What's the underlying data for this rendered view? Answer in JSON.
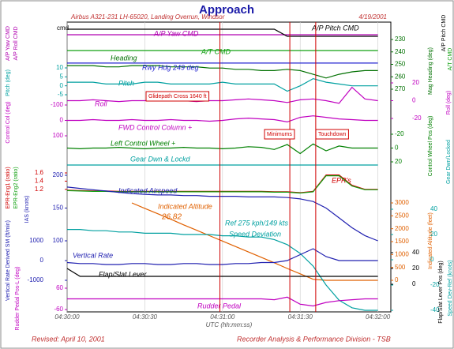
{
  "header": {
    "title": "Approach",
    "subtitle": "Airbus A321-231 LH-65020, Landing Overrun, Windsor",
    "date": "4/19/2001",
    "marker": "cmd"
  },
  "time_axis": {
    "xlabel": "UTC (hh:mm:ss)",
    "xlim": [
      0,
      125
    ],
    "xticks": [
      {
        "value": 0,
        "label": "04:30:00"
      },
      {
        "value": 30,
        "label": "04:30:30"
      },
      {
        "value": 60,
        "label": "04:31:00"
      },
      {
        "value": 90,
        "label": "04:31:30"
      },
      {
        "value": 120,
        "label": "04:32:00"
      }
    ],
    "x": [
      0,
      5,
      10,
      15,
      20,
      25,
      30,
      35,
      40,
      45,
      50,
      55,
      60,
      65,
      70,
      75,
      80,
      85,
      90,
      95,
      100,
      105,
      110,
      115,
      120
    ]
  },
  "events": [
    {
      "t": 59,
      "label": "Glidepath Cross 1640 ft"
    },
    {
      "t": 86,
      "label": "Minimums"
    },
    {
      "t": 96,
      "label": "Touchdown"
    }
  ],
  "annotations": [
    "26.82",
    "Ref 275 kph/149 kts"
  ],
  "chart_data": [
    {
      "type": "line",
      "ylabels": [
        "A/P Yaw CMD",
        "A/P Roll CMD"
      ],
      "ylim": [
        0,
        1
      ],
      "yticks": [],
      "series": [
        {
          "name": "A/P Yaw CMD",
          "color": "#b000b0",
          "values": [
            1,
            1,
            1,
            1,
            1,
            1,
            1,
            1,
            1,
            1,
            1,
            1,
            1,
            1,
            1,
            1,
            1,
            1,
            1,
            1,
            1,
            1,
            1,
            1,
            1
          ]
        }
      ]
    },
    {
      "type": "line",
      "ylabels": [
        "A/P Pitch CMD"
      ],
      "ylim": [
        0,
        1
      ],
      "yticks": [],
      "series": [
        {
          "name": "A/P Pitch CMD",
          "color": "#000000",
          "values": [
            1,
            1,
            1,
            1,
            1,
            1,
            1,
            1,
            1,
            1,
            1,
            1,
            1,
            1,
            1,
            1,
            1,
            0,
            0,
            0,
            0,
            0,
            0,
            0,
            0
          ]
        }
      ]
    },
    {
      "type": "line",
      "ylabels": [
        "A/T CMD"
      ],
      "ylim": [
        0,
        1
      ],
      "yticks": [],
      "series": [
        {
          "name": "A/T CMD",
          "color": "#10a010",
          "values": [
            1,
            1,
            1,
            1,
            1,
            1,
            1,
            1,
            1,
            1,
            1,
            1,
            1,
            1,
            1,
            1,
            1,
            1,
            1,
            1,
            1,
            1,
            1,
            1,
            1
          ]
        }
      ]
    },
    {
      "type": "line",
      "ylabels": [
        "Mag Heading (deg)"
      ],
      "ylim": [
        270,
        230
      ],
      "yticks": [
        230,
        240,
        250,
        260,
        270
      ],
      "series": [
        {
          "name": "Heading",
          "color": "#007000",
          "values": [
            251,
            251,
            251,
            252,
            252,
            251,
            251,
            251,
            252,
            252,
            252,
            253,
            253,
            254,
            254,
            255,
            255,
            254,
            255,
            258,
            261,
            258,
            256,
            255,
            255
          ]
        },
        {
          "name": "Rwy Hdg 249 deg",
          "color": "#2020d0",
          "values": [
            249,
            249,
            249,
            249,
            249,
            249,
            249,
            249,
            249,
            249,
            249,
            249,
            249,
            249,
            249,
            249,
            249,
            249,
            249,
            249,
            249,
            249,
            249,
            249,
            249
          ]
        }
      ]
    },
    {
      "type": "line",
      "ylabels": [
        "Pitch (deg)"
      ],
      "ylim": [
        -5,
        10
      ],
      "yticks": [
        10,
        5,
        0,
        -5
      ],
      "series": [
        {
          "name": "Pitch",
          "color": "#00a0a0",
          "values": [
            2,
            2,
            2,
            1,
            1,
            1,
            2,
            2,
            1,
            1,
            1,
            1,
            2,
            1,
            1,
            1,
            1,
            -3,
            0,
            4,
            2,
            1,
            0,
            0,
            0
          ]
        }
      ]
    },
    {
      "type": "line",
      "ylabels": [
        "Roll (deg)"
      ],
      "ylim": [
        -20,
        20
      ],
      "yticks": [
        -20,
        0,
        20
      ],
      "series": [
        {
          "name": "Roll",
          "color": "#c000c0",
          "values": [
            0,
            0,
            1,
            0,
            -1,
            0,
            0,
            1,
            0,
            0,
            -1,
            0,
            0,
            1,
            2,
            1,
            0,
            -2,
            1,
            2,
            0,
            -3,
            15,
            2,
            0
          ]
        }
      ]
    },
    {
      "type": "line",
      "ylabels": [
        "Control Col (deg)"
      ],
      "ylim": [
        100,
        -100
      ],
      "yticks": [
        -100,
        0,
        100
      ],
      "series": [
        {
          "name": "FWD Control Column +",
          "color": "#c000c0",
          "values": [
            0,
            0,
            -5,
            0,
            0,
            -5,
            0,
            0,
            -5,
            0,
            0,
            5,
            0,
            -10,
            -15,
            -10,
            -5,
            10,
            -20,
            -30,
            -20,
            -10,
            -5,
            0,
            0
          ]
        }
      ]
    },
    {
      "type": "line",
      "ylabels": [
        "Control Wheel Pos (deg)"
      ],
      "ylim": [
        20,
        -20
      ],
      "yticks": [
        -20,
        0,
        20
      ],
      "series": [
        {
          "name": "Left Control Wheel +",
          "color": "#008000",
          "values": [
            0,
            1,
            0,
            0,
            -1,
            0,
            1,
            0,
            0,
            -1,
            0,
            0,
            1,
            0,
            -2,
            -1,
            2,
            -5,
            8,
            -6,
            4,
            -3,
            0,
            0,
            0
          ]
        }
      ]
    },
    {
      "type": "line",
      "ylabels": [
        "Gear Dwn/Locked"
      ],
      "ylim": [
        0,
        1
      ],
      "yticks": [],
      "series": [
        {
          "name": "Gear Dwn & Lockd",
          "color": "#00a0a0",
          "values": [
            1,
            1,
            1,
            1,
            1,
            1,
            1,
            1,
            1,
            1,
            1,
            1,
            1,
            1,
            1,
            1,
            1,
            1,
            1,
            1,
            1,
            1,
            1,
            1,
            1
          ]
        }
      ]
    },
    {
      "type": "line",
      "ylabels": [
        "EPR-Eng1 (ratio)",
        "EPR-Eng2 (ratio)"
      ],
      "ylim": [
        1.1,
        1.6
      ],
      "yticks": [
        1.2,
        1.4,
        1.6
      ],
      "series": [
        {
          "name": "EPR's",
          "color": "#d00000",
          "values": [
            1.18,
            1.17,
            1.16,
            1.16,
            1.15,
            1.15,
            1.15,
            1.15,
            1.15,
            1.15,
            1.15,
            1.15,
            1.15,
            1.15,
            1.15,
            1.15,
            1.14,
            1.14,
            1.12,
            1.15,
            1.55,
            1.55,
            1.3,
            1.2,
            1.2
          ]
        },
        {
          "color": "#10a010",
          "values": [
            1.17,
            1.16,
            1.15,
            1.15,
            1.14,
            1.14,
            1.14,
            1.14,
            1.14,
            1.14,
            1.14,
            1.14,
            1.14,
            1.14,
            1.14,
            1.14,
            1.13,
            1.13,
            1.11,
            1.14,
            1.53,
            1.53,
            1.28,
            1.19,
            1.19
          ]
        }
      ]
    },
    {
      "type": "line",
      "ylabels": [
        "IAS (knots)"
      ],
      "ylim": [
        100,
        200
      ],
      "yticks": [
        100,
        150,
        200
      ],
      "series": [
        {
          "name": "Indicated Airspeed",
          "color": "#2020b0",
          "values": [
            182,
            180,
            178,
            176,
            174,
            172,
            171,
            170,
            170,
            169,
            169,
            168,
            168,
            168,
            167,
            167,
            167,
            166,
            164,
            160,
            150,
            135,
            120,
            108,
            100
          ]
        }
      ]
    },
    {
      "type": "line",
      "ylabels": [
        "Indicated Altitude (feet)"
      ],
      "ylim": [
        0,
        3000
      ],
      "yticks": [
        0,
        500,
        1000,
        1500,
        2000,
        2500,
        3000
      ],
      "series": [
        {
          "name": "Indicated Altitude",
          "color": "#e06000",
          "values": [
            null,
            null,
            null,
            null,
            null,
            3000,
            2790,
            2580,
            2370,
            2150,
            1940,
            1730,
            1520,
            1310,
            1100,
            890,
            680,
            460,
            250,
            40,
            0,
            0,
            0,
            0,
            0
          ]
        }
      ]
    },
    {
      "type": "line",
      "ylabels": [
        "Speed Dev-Ref (knots)"
      ],
      "ylim": [
        -40,
        40
      ],
      "yticks": [
        -40,
        -20,
        0,
        20,
        40
      ],
      "series": [
        {
          "name": "Speed Deviation",
          "color": "#00a0a0",
          "values": [
            24,
            24,
            23,
            23,
            22,
            22,
            21,
            21,
            21,
            20,
            20,
            20,
            19,
            19,
            18,
            18,
            16,
            12,
            5,
            -5,
            -20,
            -32,
            -38,
            -40,
            -40
          ]
        }
      ]
    },
    {
      "type": "line",
      "ylabels": [
        "Vertical Rate Derived SM (ft/min)"
      ],
      "ylim": [
        -1000,
        1000
      ],
      "yticks": [
        -1000,
        0,
        1000
      ],
      "series": [
        {
          "name": "Vertical Rate",
          "color": "#2020b0",
          "values": [
            -100,
            -150,
            -150,
            -200,
            -200,
            -150,
            -150,
            -200,
            -200,
            -150,
            -150,
            -200,
            -200,
            -150,
            -150,
            -100,
            -100,
            0,
            300,
            600,
            200,
            0,
            0,
            0,
            0
          ]
        }
      ]
    },
    {
      "type": "line",
      "ylabels": [
        "Flap/Slat Lever Pos (deg)"
      ],
      "ylim": [
        0,
        40
      ],
      "yticks": [
        0,
        20,
        40
      ],
      "series": [
        {
          "name": "Flap/Slat Lever",
          "color": "#000000",
          "values": [
            20,
            10,
            10,
            10,
            10,
            10,
            10,
            10,
            10,
            10,
            10,
            10,
            10,
            10,
            10,
            10,
            10,
            10,
            10,
            10,
            10,
            10,
            10,
            10,
            10
          ]
        }
      ]
    },
    {
      "type": "line",
      "ylabels": [
        "Rudder Pedal Pos-L (deg)"
      ],
      "ylim": [
        -60,
        60
      ],
      "yticks": [
        -60,
        60
      ],
      "series": [
        {
          "name": "Rudder Pedal",
          "color": "#c000c0",
          "values": [
            0,
            0,
            0,
            0,
            0,
            0,
            0,
            0,
            0,
            0,
            0,
            0,
            0,
            0,
            0,
            0,
            -5,
            10,
            -30,
            -40,
            -20,
            -10,
            -5,
            0,
            0
          ]
        }
      ]
    }
  ],
  "footer": {
    "left": "Revised: April 10, 2001",
    "right": "Recorder Analysis & Performance Division - TSB"
  }
}
